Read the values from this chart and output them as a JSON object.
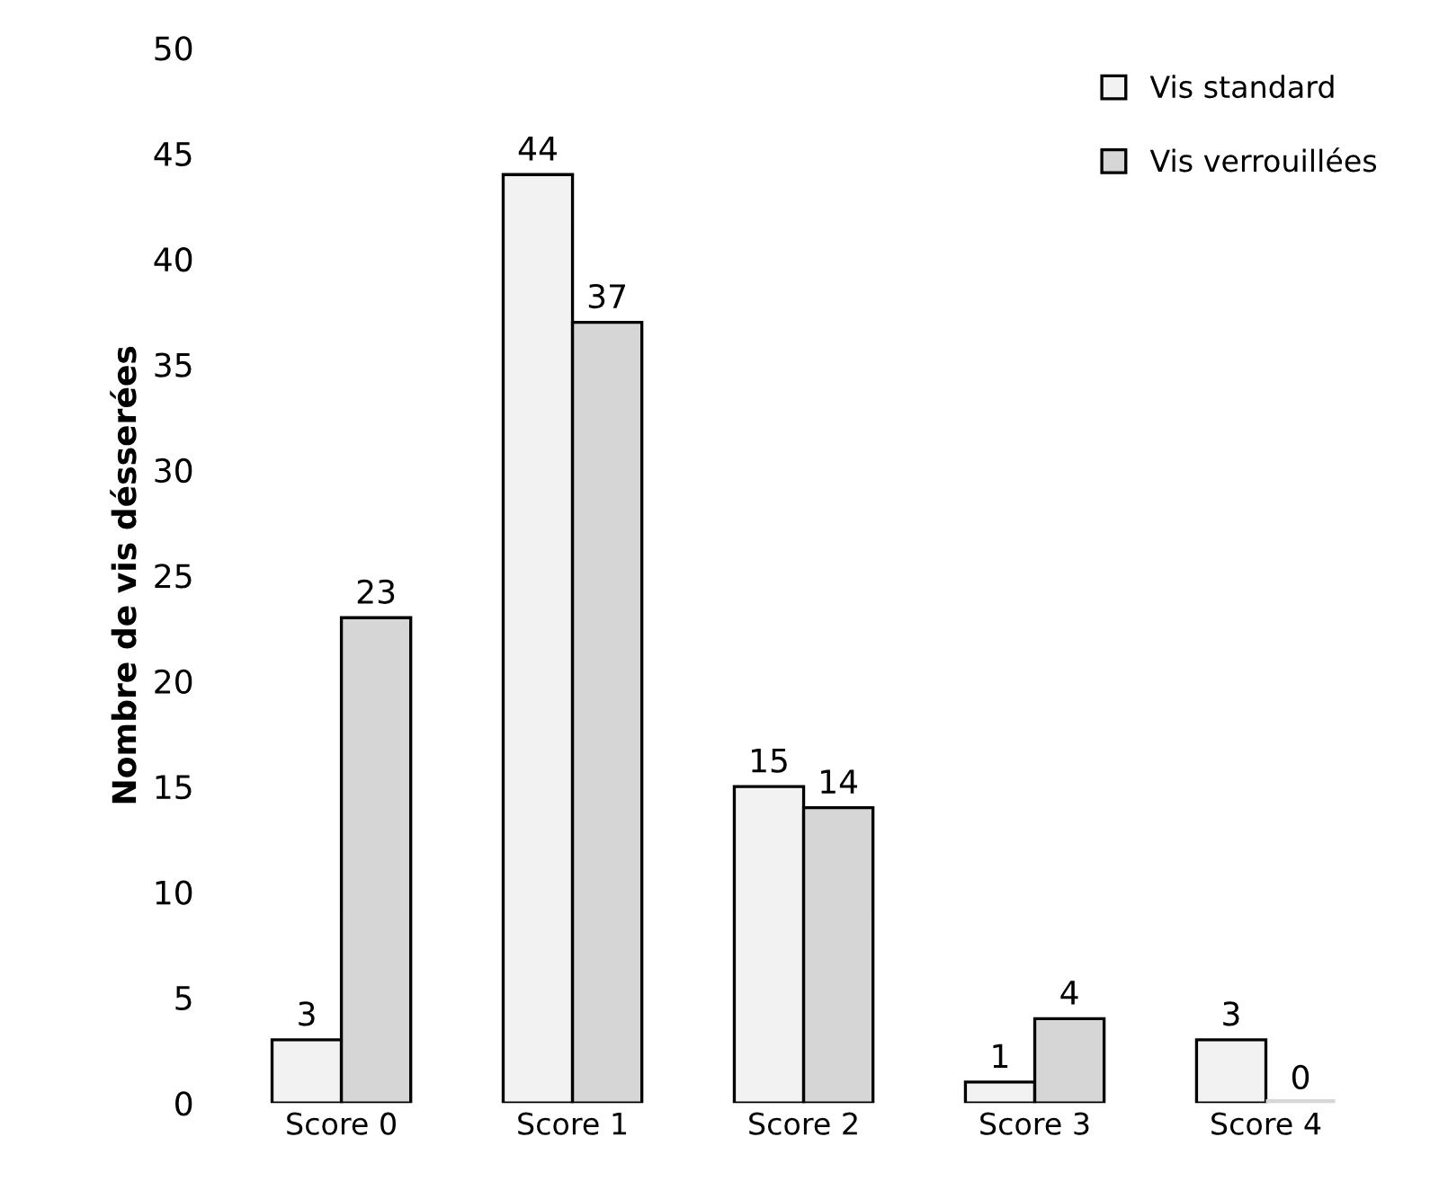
{
  "chart_data": {
    "type": "bar",
    "ylabel": "Nombre de vis désserées",
    "categories": [
      "Score 0",
      "Score 1",
      "Score 2",
      "Score 3",
      "Score 4"
    ],
    "series": [
      {
        "name": "Vis standard",
        "color": "#f2f2f2",
        "values": [
          3,
          44,
          15,
          1,
          3
        ]
      },
      {
        "name": "Vis verrouillées",
        "color": "#d6d6d6",
        "values": [
          23,
          37,
          14,
          4,
          0
        ]
      }
    ],
    "ylim": [
      0,
      50
    ],
    "yticks": [
      0,
      5,
      10,
      15,
      20,
      25,
      30,
      35,
      40,
      45,
      50
    ],
    "data_labels": true,
    "grid": false,
    "legend": "top right"
  }
}
